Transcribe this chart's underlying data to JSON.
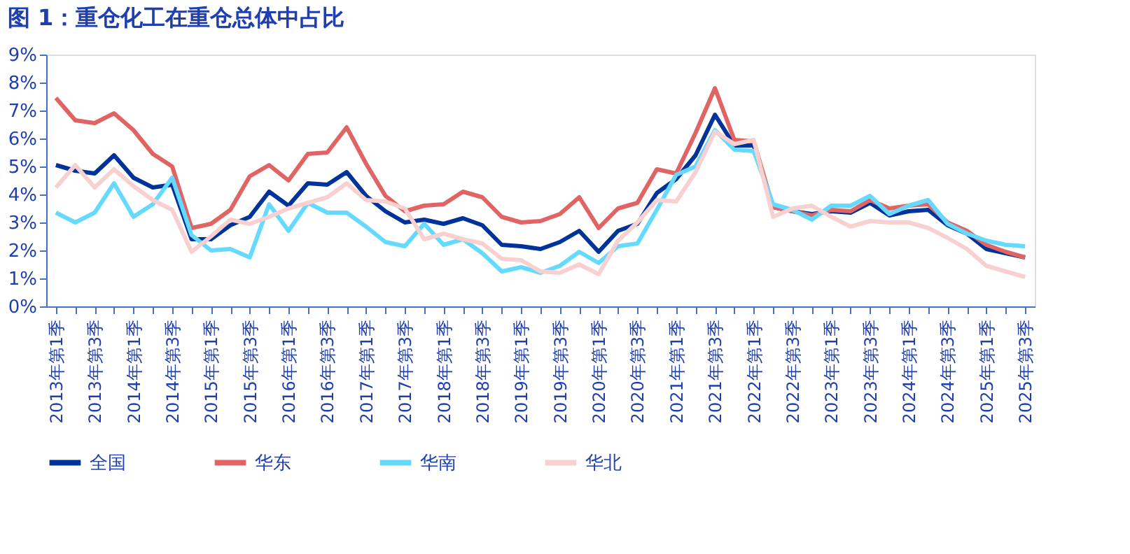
{
  "chart_data": {
    "type": "line",
    "title": "图 1：重仓化工在重仓总体中占比",
    "categories": [
      "2013年第1季",
      null,
      "2013年第3季",
      null,
      "2014年第1季",
      null,
      "2014年第3季",
      null,
      "2015年第1季",
      null,
      "2015年第3季",
      null,
      "2016年第1季",
      null,
      "2016年第3季",
      null,
      "2017年第1季",
      null,
      "2017年第3季",
      null,
      "2018年第1季",
      null,
      "2018年第3季",
      null,
      "2019年第1季",
      null,
      "2019年第3季",
      null,
      "2020年第1季",
      null,
      "2020年第3季",
      null,
      "2021年第1季",
      null,
      "2021年第3季",
      null,
      "2022年第1季",
      null,
      "2022年第3季",
      null,
      "2023年第1季",
      null,
      "2023年第3季",
      null,
      "2024年第1季",
      null,
      "2024年第3季",
      null,
      "2025年第1季",
      null,
      "2025年第3季"
    ],
    "series": [
      {
        "name": "全国",
        "color": "#003399",
        "values": [
          5.05,
          4.85,
          4.75,
          5.4,
          4.6,
          4.25,
          4.35,
          2.4,
          2.4,
          2.9,
          3.2,
          4.1,
          3.6,
          4.4,
          4.35,
          4.8,
          3.95,
          3.4,
          3.0,
          3.1,
          2.95,
          3.15,
          2.9,
          2.2,
          2.15,
          2.05,
          2.3,
          2.7,
          1.95,
          2.7,
          2.95,
          4.05,
          4.55,
          5.4,
          6.85,
          5.75,
          5.75,
          3.55,
          3.4,
          3.3,
          3.4,
          3.35,
          3.7,
          3.25,
          3.4,
          3.45,
          2.9,
          2.6,
          2.05,
          1.9,
          1.75
        ]
      },
      {
        "name": "华东",
        "color": "#e06464",
        "values": [
          7.45,
          6.65,
          6.55,
          6.9,
          6.3,
          5.45,
          5.0,
          2.8,
          2.95,
          3.45,
          4.65,
          5.05,
          4.5,
          5.45,
          5.5,
          6.4,
          5.1,
          3.95,
          3.4,
          3.6,
          3.65,
          4.1,
          3.9,
          3.2,
          3.0,
          3.05,
          3.3,
          3.9,
          2.8,
          3.5,
          3.7,
          4.9,
          4.75,
          6.2,
          7.8,
          5.95,
          5.9,
          3.55,
          3.4,
          3.25,
          3.45,
          3.4,
          3.8,
          3.5,
          3.6,
          3.65,
          3.0,
          2.7,
          2.2,
          1.95,
          1.75
        ]
      },
      {
        "name": "华南",
        "color": "#66d9ff",
        "values": [
          3.35,
          3.0,
          3.35,
          4.4,
          3.2,
          3.65,
          4.6,
          2.55,
          2.0,
          2.05,
          1.75,
          3.65,
          2.7,
          3.7,
          3.35,
          3.35,
          2.85,
          2.3,
          2.15,
          2.95,
          2.2,
          2.4,
          1.9,
          1.25,
          1.4,
          1.2,
          1.45,
          1.95,
          1.55,
          2.15,
          2.25,
          3.45,
          4.7,
          5.0,
          6.3,
          5.6,
          5.55,
          3.65,
          3.45,
          3.1,
          3.6,
          3.6,
          3.95,
          3.3,
          3.6,
          3.8,
          2.95,
          2.6,
          2.35,
          2.2,
          2.15
        ]
      },
      {
        "name": "华北",
        "color": "#f8d0d0",
        "values": [
          4.25,
          5.05,
          4.25,
          4.9,
          4.3,
          3.8,
          3.45,
          1.95,
          2.5,
          3.1,
          2.95,
          3.2,
          3.5,
          3.7,
          3.9,
          4.4,
          3.8,
          3.75,
          3.5,
          2.4,
          2.6,
          2.4,
          2.25,
          1.7,
          1.65,
          1.25,
          1.2,
          1.5,
          1.15,
          2.35,
          3.0,
          3.8,
          3.75,
          4.8,
          6.25,
          5.8,
          5.95,
          3.2,
          3.5,
          3.6,
          3.2,
          2.85,
          3.05,
          3.0,
          3.0,
          2.8,
          2.45,
          2.05,
          1.45,
          1.25,
          1.05
        ]
      }
    ],
    "ylim": [
      0,
      9
    ],
    "yticks": [
      {
        "value": 0,
        "label": "0%"
      },
      {
        "value": 1,
        "label": "1%"
      },
      {
        "value": 2,
        "label": "2%"
      },
      {
        "value": 3,
        "label": "3%"
      },
      {
        "value": 4,
        "label": "4%"
      },
      {
        "value": 5,
        "label": "5%"
      },
      {
        "value": 6,
        "label": "6%"
      },
      {
        "value": 7,
        "label": "7%"
      },
      {
        "value": 8,
        "label": "8%"
      },
      {
        "value": 9,
        "label": "9%"
      }
    ],
    "grid": false,
    "legend": "bottom",
    "marker": "none",
    "line_style": "solid"
  }
}
